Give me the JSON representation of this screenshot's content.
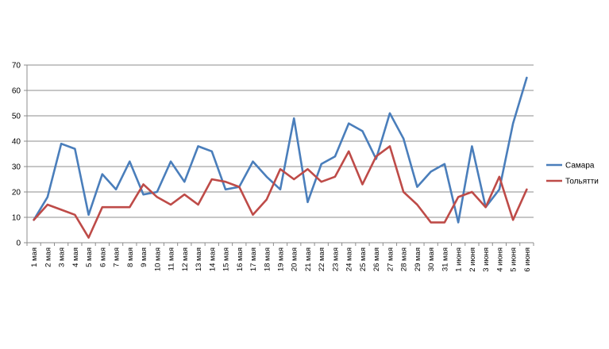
{
  "chart_data": {
    "type": "line",
    "categories": [
      "1 мая",
      "2 мая",
      "3 мая",
      "4 мая",
      "5 мая",
      "6 мая",
      "7 мая",
      "8 мая",
      "9 мая",
      "10 мая",
      "11 мая",
      "12 мая",
      "13 мая",
      "14 мая",
      "15 мая",
      "16 мая",
      "17 мая",
      "18 мая",
      "19 мая",
      "20 мая",
      "21 мая",
      "22 мая",
      "23 мая",
      "24 мая",
      "25 мая",
      "26 мая",
      "27 мая",
      "28 мая",
      "29 мая",
      "30 мая",
      "31 мая",
      "1 июня",
      "2 июня",
      "3 июня",
      "4 июня",
      "5 июня",
      "6 июня"
    ],
    "series": [
      {
        "name": "Самара",
        "color": "#4a7ebb",
        "values": [
          9,
          18,
          39,
          37,
          11,
          27,
          21,
          32,
          19,
          20,
          32,
          24,
          38,
          36,
          21,
          22,
          32,
          26,
          21,
          49,
          16,
          31,
          34,
          47,
          44,
          33,
          51,
          41,
          22,
          28,
          31,
          8,
          38,
          14,
          21,
          47,
          65
        ]
      },
      {
        "name": "Тольятти",
        "color": "#be4b48",
        "values": [
          9,
          15,
          13,
          11,
          2,
          14,
          14,
          14,
          23,
          18,
          15,
          19,
          15,
          25,
          24,
          22,
          11,
          17,
          29,
          25,
          29,
          24,
          26,
          36,
          23,
          34,
          38,
          20,
          15,
          8,
          8,
          18,
          20,
          14,
          26,
          9,
          21
        ]
      }
    ],
    "yticks": [
      "0",
      "10",
      "20",
      "30",
      "40",
      "50",
      "60",
      "70"
    ],
    "ylim": [
      0,
      70
    ],
    "grid": true,
    "legend": "right"
  }
}
